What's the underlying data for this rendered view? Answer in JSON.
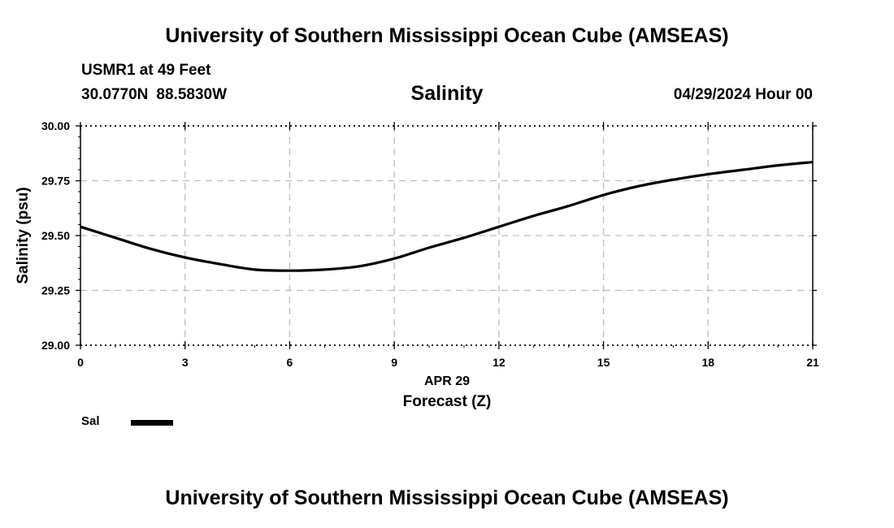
{
  "header": {
    "title": "University of Southern Mississippi Ocean Cube (AMSEAS)",
    "station": "USMR1 at 49 Feet",
    "latitude": "30.0770N",
    "longitude": "88.5830W",
    "datetime": "04/29/2024 Hour 00"
  },
  "footer": {
    "title": "University of Southern Mississippi Ocean Cube (AMSEAS)"
  },
  "chart_data": {
    "type": "line",
    "title": "Salinity",
    "xlabel": "Forecast (Z)",
    "xlabel_date": "APR 29",
    "ylabel": "Salinity (psu)",
    "xlim": [
      0,
      21
    ],
    "ylim": [
      29.0,
      30.0
    ],
    "x_ticks": [
      0,
      3,
      6,
      9,
      12,
      15,
      18,
      21
    ],
    "x_tick_labels": [
      "0",
      "3",
      "6",
      "9",
      "12",
      "15",
      "18",
      "21"
    ],
    "y_ticks": [
      29.0,
      29.25,
      29.5,
      29.75,
      30.0
    ],
    "y_tick_labels": [
      "29.00",
      "29.25",
      "29.50",
      "29.75",
      "30.00"
    ],
    "grid": true,
    "series": [
      {
        "name": "Sal",
        "color": "#000000",
        "x": [
          0,
          1,
          2,
          3,
          4,
          5,
          6,
          7,
          8,
          9,
          10,
          11,
          12,
          13,
          14,
          15,
          16,
          17,
          18,
          19,
          20,
          21
        ],
        "values": [
          29.54,
          29.49,
          29.44,
          29.4,
          29.37,
          29.345,
          29.34,
          29.345,
          29.36,
          29.395,
          29.445,
          29.49,
          29.54,
          29.59,
          29.635,
          29.685,
          29.725,
          29.755,
          29.78,
          29.8,
          29.82,
          29.835
        ]
      }
    ]
  }
}
